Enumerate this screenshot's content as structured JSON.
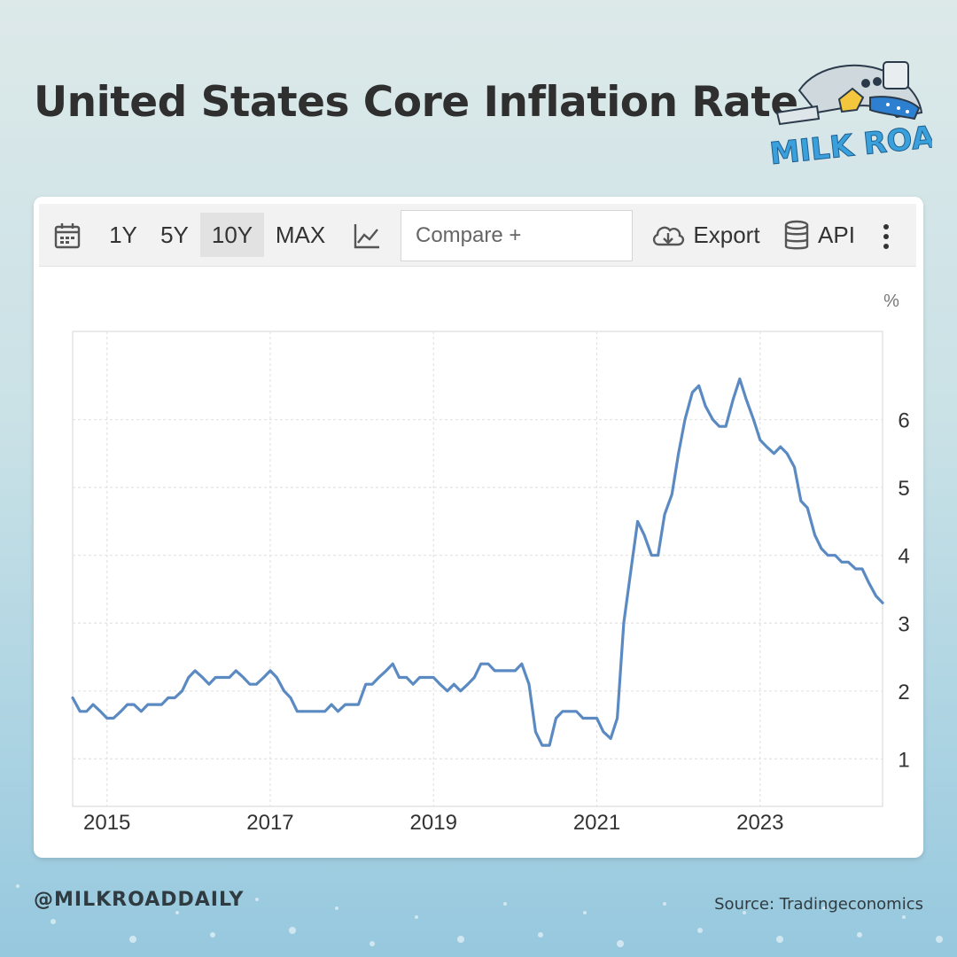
{
  "page": {
    "title": "United States Core Inflation Rate",
    "logo_text": "MILK ROAD",
    "handle": "@MILKROADDAILY",
    "source": "Source: Tradingeconomics"
  },
  "toolbar": {
    "calendar_icon": "calendar-icon",
    "ranges": [
      "1Y",
      "5Y",
      "10Y",
      "MAX"
    ],
    "active_range": "10Y",
    "chart_type_icon": "line-chart-icon",
    "compare_placeholder": "Compare +",
    "export_label": "Export",
    "api_label": "API",
    "more_icon": "vertical-dots-icon"
  },
  "colors": {
    "line": "#5b8ac3",
    "grid": "#e3e3e3",
    "title": "#2f2f2f",
    "logo_blue": "#3aa0dc"
  },
  "chart_data": {
    "type": "line",
    "title": "",
    "xlabel": "",
    "ylabel": "%",
    "x_tick_labels": [
      "2015",
      "2017",
      "2019",
      "2021",
      "2023"
    ],
    "y_tick_labels": [
      "1",
      "2",
      "3",
      "4",
      "5",
      "6"
    ],
    "xlim": [
      2014.58,
      2024.5
    ],
    "ylim": [
      0.3,
      7.3
    ],
    "grid": true,
    "series": [
      {
        "name": "",
        "x": [
          2014.58,
          2014.67,
          2014.75,
          2014.83,
          2014.92,
          2015.0,
          2015.08,
          2015.17,
          2015.25,
          2015.33,
          2015.42,
          2015.5,
          2015.58,
          2015.67,
          2015.75,
          2015.83,
          2015.92,
          2016.0,
          2016.08,
          2016.17,
          2016.25,
          2016.33,
          2016.42,
          2016.5,
          2016.58,
          2016.67,
          2016.75,
          2016.83,
          2016.92,
          2017.0,
          2017.08,
          2017.17,
          2017.25,
          2017.33,
          2017.42,
          2017.5,
          2017.58,
          2017.67,
          2017.75,
          2017.83,
          2017.92,
          2018.0,
          2018.08,
          2018.17,
          2018.25,
          2018.33,
          2018.42,
          2018.5,
          2018.58,
          2018.67,
          2018.75,
          2018.83,
          2018.92,
          2019.0,
          2019.08,
          2019.17,
          2019.25,
          2019.33,
          2019.42,
          2019.5,
          2019.58,
          2019.67,
          2019.75,
          2019.83,
          2019.92,
          2020.0,
          2020.08,
          2020.17,
          2020.25,
          2020.33,
          2020.42,
          2020.5,
          2020.58,
          2020.67,
          2020.75,
          2020.83,
          2020.92,
          2021.0,
          2021.08,
          2021.17,
          2021.25,
          2021.33,
          2021.42,
          2021.5,
          2021.58,
          2021.67,
          2021.75,
          2021.83,
          2021.92,
          2022.0,
          2022.08,
          2022.17,
          2022.25,
          2022.33,
          2022.42,
          2022.5,
          2022.58,
          2022.67,
          2022.75,
          2022.83,
          2022.92,
          2023.0,
          2023.08,
          2023.17,
          2023.25,
          2023.33,
          2023.42,
          2023.5,
          2023.58,
          2023.67,
          2023.75,
          2023.83,
          2023.92,
          2024.0,
          2024.08,
          2024.17,
          2024.25,
          2024.33,
          2024.42,
          2024.5
        ],
        "values": [
          1.9,
          1.7,
          1.7,
          1.8,
          1.7,
          1.6,
          1.6,
          1.7,
          1.8,
          1.8,
          1.7,
          1.8,
          1.8,
          1.8,
          1.9,
          1.9,
          2.0,
          2.2,
          2.3,
          2.2,
          2.1,
          2.2,
          2.2,
          2.2,
          2.3,
          2.2,
          2.1,
          2.1,
          2.2,
          2.3,
          2.2,
          2.0,
          1.9,
          1.7,
          1.7,
          1.7,
          1.7,
          1.7,
          1.8,
          1.7,
          1.8,
          1.8,
          1.8,
          2.1,
          2.1,
          2.2,
          2.3,
          2.4,
          2.2,
          2.2,
          2.1,
          2.2,
          2.2,
          2.2,
          2.1,
          2.0,
          2.1,
          2.0,
          2.1,
          2.2,
          2.4,
          2.4,
          2.3,
          2.3,
          2.3,
          2.3,
          2.4,
          2.1,
          1.4,
          1.2,
          1.2,
          1.6,
          1.7,
          1.7,
          1.7,
          1.6,
          1.6,
          1.6,
          1.4,
          1.3,
          1.6,
          3.0,
          3.8,
          4.5,
          4.3,
          4.0,
          4.0,
          4.6,
          4.9,
          5.5,
          6.0,
          6.4,
          6.5,
          6.2,
          6.0,
          5.9,
          5.9,
          6.3,
          6.6,
          6.3,
          6.0,
          5.7,
          5.6,
          5.5,
          5.6,
          5.5,
          5.3,
          4.8,
          4.7,
          4.3,
          4.1,
          4.0,
          4.0,
          3.9,
          3.9,
          3.8,
          3.8,
          3.6,
          3.4,
          3.3
        ]
      }
    ]
  }
}
